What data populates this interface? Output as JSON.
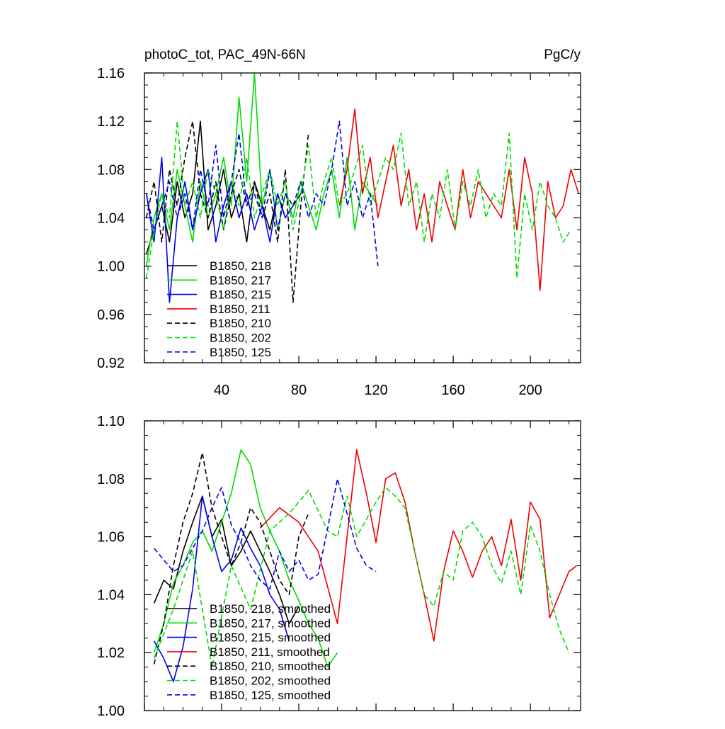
{
  "chart_data": [
    {
      "type": "line",
      "title": "photoC_tot, PAC_49N-66N",
      "units": "PgC/y",
      "xlabel": "",
      "ylabel": "",
      "xlim": [
        0,
        226
      ],
      "ylim": [
        0.92,
        1.16
      ],
      "xticks": [
        40,
        80,
        120,
        160,
        200
      ],
      "yticks": [
        0.92,
        0.96,
        1.0,
        1.04,
        1.08,
        1.12,
        1.16
      ],
      "ytick_labels": [
        "0.92",
        "0.96",
        "1.00",
        "1.04",
        "1.08",
        "1.12",
        "1.16"
      ],
      "legend_position": "lower-left",
      "series": [
        {
          "name": "B1850, 218",
          "color": "#000000",
          "dash": "solid",
          "x": [
            1,
            5,
            9,
            13,
            17,
            21,
            25,
            29,
            33,
            37,
            41,
            45,
            49,
            53,
            57,
            61,
            65,
            69,
            73,
            77,
            81
          ],
          "values": [
            1.01,
            1.03,
            1.05,
            1.02,
            1.07,
            1.04,
            1.06,
            1.12,
            1.03,
            1.05,
            1.08,
            1.04,
            1.06,
            1.02,
            1.07,
            1.05,
            1.03,
            1.06,
            1.04,
            1.05,
            1.06
          ]
        },
        {
          "name": "B1850, 217",
          "color": "#00dd00",
          "dash": "solid",
          "x": [
            1,
            5,
            9,
            13,
            17,
            21,
            25,
            29,
            33,
            37,
            41,
            45,
            49,
            53,
            57,
            61,
            65,
            69,
            73,
            77,
            81,
            85,
            89,
            93,
            97,
            101,
            105,
            109,
            113,
            117,
            121
          ],
          "values": [
            1.0,
            1.04,
            1.06,
            1.03,
            1.08,
            1.05,
            1.02,
            1.07,
            1.04,
            1.06,
            1.09,
            1.05,
            1.14,
            1.07,
            1.16,
            1.05,
            1.08,
            1.03,
            1.06,
            1.04,
            1.07,
            1.05,
            1.03,
            1.06,
            1.08,
            1.04,
            1.09,
            1.03,
            1.07,
            1.06,
            1.05
          ]
        },
        {
          "name": "B1850, 215",
          "color": "#0000ee",
          "dash": "solid",
          "x": [
            1,
            5,
            9,
            13,
            17,
            21,
            25,
            29,
            33,
            37,
            41,
            45,
            49,
            53,
            57,
            61,
            65,
            69,
            73,
            77
          ],
          "values": [
            1.06,
            1.02,
            1.09,
            0.97,
            1.04,
            1.07,
            1.03,
            1.06,
            1.08,
            1.02,
            1.05,
            1.07,
            1.04,
            1.06,
            1.03,
            1.05,
            1.02,
            1.06,
            1.04,
            1.05
          ]
        },
        {
          "name": "B1850, 211",
          "color": "#ee0000",
          "dash": "solid",
          "x": [
            101,
            105,
            109,
            113,
            117,
            121,
            125,
            129,
            133,
            137,
            141,
            145,
            149,
            153,
            157,
            161,
            165,
            169,
            173,
            177,
            181,
            185,
            189,
            193,
            197,
            201,
            205,
            209,
            213,
            217,
            221,
            225
          ],
          "values": [
            1.05,
            1.08,
            1.13,
            1.06,
            1.09,
            1.04,
            1.07,
            1.1,
            1.05,
            1.08,
            1.03,
            1.06,
            1.02,
            1.07,
            1.05,
            1.03,
            1.08,
            1.04,
            1.07,
            1.06,
            1.05,
            1.04,
            1.08,
            1.03,
            1.09,
            1.06,
            0.98,
            1.07,
            1.04,
            1.05,
            1.08,
            1.06
          ]
        },
        {
          "name": "B1850, 210",
          "color": "#000000",
          "dash": "dashed",
          "x": [
            1,
            5,
            9,
            13,
            17,
            21,
            25,
            29,
            33,
            37,
            41,
            45,
            49,
            53,
            57,
            61,
            65,
            69,
            73,
            77,
            81,
            85
          ],
          "values": [
            1.04,
            1.07,
            1.02,
            1.08,
            1.05,
            1.09,
            1.12,
            1.06,
            1.04,
            1.07,
            1.03,
            1.06,
            1.08,
            1.05,
            1.07,
            1.04,
            1.06,
            1.02,
            1.08,
            0.97,
            1.05,
            1.11
          ]
        },
        {
          "name": "B1850, 202",
          "color": "#00dd00",
          "dash": "dashed",
          "x": [
            1,
            5,
            9,
            13,
            17,
            21,
            25,
            29,
            33,
            37,
            41,
            45,
            49,
            53,
            57,
            61,
            65,
            69,
            73,
            77,
            81,
            85,
            89,
            93,
            97,
            101,
            105,
            109,
            113,
            117,
            121,
            125,
            129,
            133,
            137,
            141,
            145,
            149,
            153,
            157,
            161,
            165,
            169,
            173,
            177,
            181,
            185,
            189,
            193,
            197,
            201,
            205,
            209,
            213,
            217,
            221
          ],
          "values": [
            0.99,
            1.03,
            1.06,
            1.04,
            1.12,
            1.05,
            1.07,
            1.04,
            1.08,
            1.06,
            1.03,
            1.07,
            1.05,
            1.09,
            1.04,
            1.06,
            1.08,
            1.05,
            1.07,
            1.03,
            1.06,
            1.1,
            1.04,
            1.07,
            1.09,
            1.05,
            1.06,
            1.08,
            1.1,
            1.05,
            1.07,
            1.09,
            1.08,
            1.11,
            1.05,
            1.07,
            1.02,
            1.06,
            1.04,
            1.08,
            1.03,
            1.07,
            1.05,
            1.08,
            1.04,
            1.06,
            1.05,
            1.11,
            0.99,
            1.06,
            1.03,
            1.07,
            1.05,
            1.04,
            1.02,
            1.03
          ]
        },
        {
          "name": "B1850, 125",
          "color": "#0000ee",
          "dash": "dashed",
          "x": [
            1,
            5,
            9,
            13,
            17,
            21,
            25,
            29,
            33,
            37,
            41,
            45,
            49,
            53,
            57,
            61,
            65,
            69,
            73,
            77,
            81,
            85,
            89,
            93,
            97,
            101,
            105,
            109,
            113,
            117,
            121
          ],
          "values": [
            1.06,
            1.03,
            1.05,
            1.07,
            1.04,
            1.06,
            1.03,
            1.08,
            1.05,
            1.1,
            1.04,
            1.07,
            1.11,
            1.05,
            1.06,
            1.04,
            1.08,
            1.03,
            1.06,
            1.05,
            1.07,
            1.04,
            1.06,
            1.05,
            1.08,
            1.12,
            1.05,
            1.07,
            1.04,
            1.06,
            1.0
          ]
        }
      ],
      "legend": [
        "B1850, 218",
        "B1850, 217",
        "B1850, 215",
        "B1850, 211",
        "B1850, 210",
        "B1850, 202",
        "B1850, 125"
      ]
    },
    {
      "type": "line",
      "title": "",
      "xlabel": "",
      "ylabel": "",
      "xlim": [
        0,
        226
      ],
      "ylim": [
        1.0,
        1.1
      ],
      "xticks": [
        40,
        80,
        120,
        160,
        200
      ],
      "yticks": [
        1.0,
        1.02,
        1.04,
        1.06,
        1.08,
        1.1
      ],
      "ytick_labels": [
        "1.00",
        "1.02",
        "1.04",
        "1.06",
        "1.08",
        "1.10"
      ],
      "legend_position": "lower-left",
      "series": [
        {
          "name": "B1850, 218, smoothed",
          "color": "#000000",
          "dash": "solid",
          "x": [
            5,
            10,
            15,
            20,
            25,
            30,
            35,
            40,
            45,
            50,
            55,
            60,
            65,
            70,
            75,
            80
          ],
          "values": [
            1.037,
            1.045,
            1.042,
            1.055,
            1.065,
            1.074,
            1.06,
            1.066,
            1.05,
            1.055,
            1.062,
            1.055,
            1.048,
            1.04,
            1.03,
            1.036
          ]
        },
        {
          "name": "B1850, 217, smoothed",
          "color": "#00dd00",
          "dash": "solid",
          "x": [
            5,
            10,
            15,
            20,
            25,
            30,
            35,
            40,
            45,
            50,
            55,
            60,
            65,
            70,
            75,
            80,
            85,
            90,
            95,
            100
          ],
          "values": [
            1.02,
            1.03,
            1.044,
            1.05,
            1.058,
            1.062,
            1.055,
            1.065,
            1.075,
            1.09,
            1.085,
            1.07,
            1.062,
            1.055,
            1.045,
            1.038,
            1.03,
            1.025,
            1.015,
            1.02
          ]
        },
        {
          "name": "B1850, 215, smoothed",
          "color": "#0000ee",
          "dash": "solid",
          "x": [
            5,
            10,
            15,
            20,
            25,
            30,
            35,
            40,
            45,
            50,
            55,
            60,
            65,
            70,
            75
          ],
          "values": [
            1.024,
            1.018,
            1.01,
            1.022,
            1.042,
            1.074,
            1.06,
            1.048,
            1.052,
            1.063,
            1.056,
            1.05,
            1.04,
            1.035,
            1.024
          ]
        },
        {
          "name": "B1850, 211, smoothed",
          "color": "#ee0000",
          "dash": "solid",
          "x": [
            60,
            70,
            80,
            90,
            100,
            105,
            110,
            115,
            120,
            125,
            130,
            135,
            140,
            145,
            150,
            155,
            160,
            165,
            170,
            175,
            180,
            185,
            190,
            195,
            200,
            205,
            210,
            215,
            220,
            224
          ],
          "values": [
            1.063,
            1.07,
            1.065,
            1.055,
            1.03,
            1.06,
            1.09,
            1.075,
            1.058,
            1.08,
            1.082,
            1.072,
            1.055,
            1.04,
            1.024,
            1.048,
            1.062,
            1.055,
            1.046,
            1.055,
            1.06,
            1.05,
            1.066,
            1.045,
            1.072,
            1.066,
            1.032,
            1.04,
            1.048,
            1.05
          ]
        },
        {
          "name": "B1850, 210, smoothed",
          "color": "#000000",
          "dash": "dashed",
          "x": [
            5,
            10,
            15,
            20,
            25,
            30,
            35,
            40,
            45,
            50,
            55,
            60,
            65,
            70,
            75,
            80,
            85
          ],
          "values": [
            1.016,
            1.03,
            1.05,
            1.065,
            1.075,
            1.089,
            1.07,
            1.06,
            1.05,
            1.058,
            1.07,
            1.065,
            1.055,
            1.045,
            1.04,
            1.06,
            1.068
          ]
        },
        {
          "name": "B1850, 202, smoothed",
          "color": "#00dd00",
          "dash": "dashed",
          "x": [
            5,
            15,
            25,
            35,
            45,
            55,
            65,
            75,
            85,
            95,
            100,
            105,
            110,
            115,
            120,
            125,
            130,
            135,
            140,
            145,
            150,
            155,
            160,
            165,
            170,
            175,
            180,
            185,
            190,
            195,
            200,
            205,
            210,
            215,
            220
          ],
          "values": [
            1.018,
            1.035,
            1.055,
            1.015,
            1.05,
            1.035,
            1.062,
            1.068,
            1.076,
            1.062,
            1.06,
            1.074,
            1.06,
            1.066,
            1.072,
            1.077,
            1.074,
            1.07,
            1.055,
            1.04,
            1.036,
            1.048,
            1.045,
            1.062,
            1.065,
            1.06,
            1.05,
            1.044,
            1.055,
            1.04,
            1.064,
            1.055,
            1.04,
            1.028,
            1.02
          ]
        },
        {
          "name": "B1850, 125, smoothed",
          "color": "#0000ee",
          "dash": "dashed",
          "x": [
            5,
            10,
            15,
            20,
            25,
            30,
            35,
            40,
            45,
            50,
            55,
            60,
            65,
            70,
            75,
            80,
            85,
            90,
            95,
            100,
            105,
            110,
            115,
            120
          ],
          "values": [
            1.056,
            1.052,
            1.048,
            1.05,
            1.056,
            1.062,
            1.07,
            1.077,
            1.064,
            1.058,
            1.05,
            1.045,
            1.042,
            1.055,
            1.048,
            1.052,
            1.045,
            1.047,
            1.063,
            1.08,
            1.068,
            1.056,
            1.05,
            1.048
          ]
        }
      ],
      "legend": [
        "B1850, 218, smoothed",
        "B1850, 217, smoothed",
        "B1850, 215, smoothed",
        "B1850, 211, smoothed",
        "B1850, 210, smoothed",
        "B1850, 202, smoothed",
        "B1850, 125, smoothed"
      ]
    }
  ]
}
